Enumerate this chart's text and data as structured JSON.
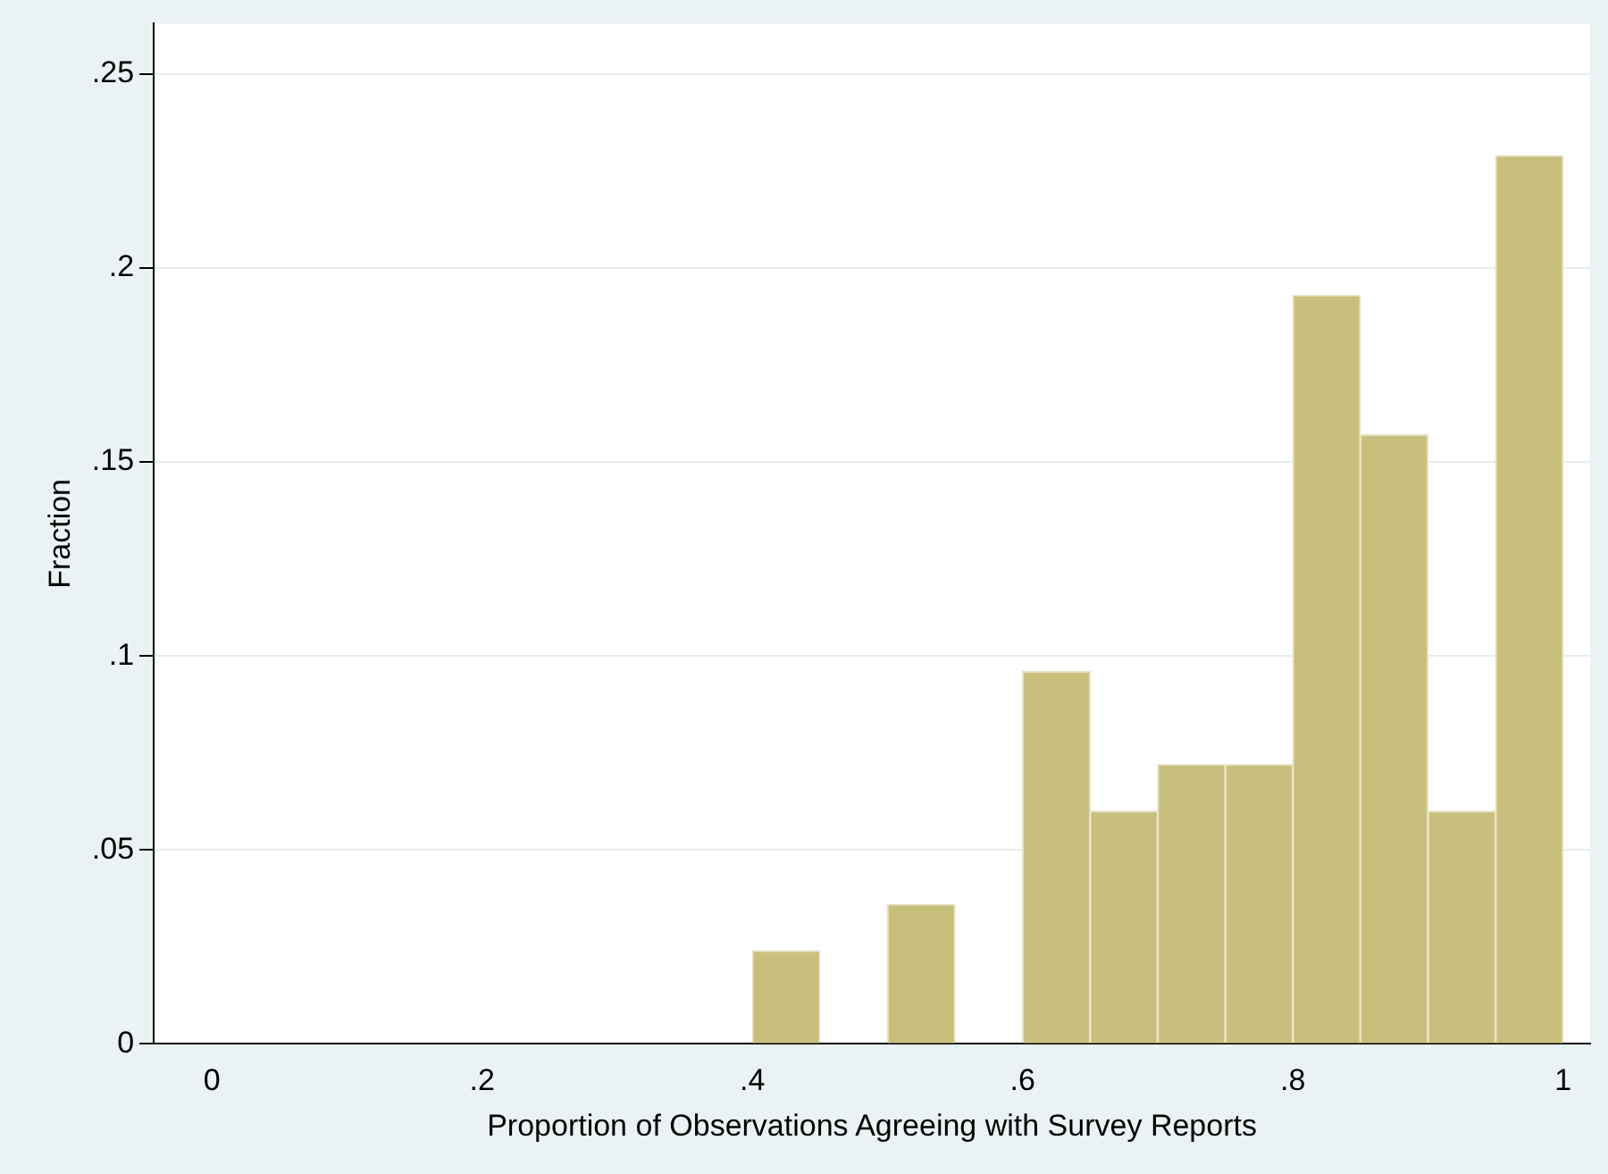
{
  "chart_data": {
    "type": "histogram",
    "xlabel": "Proportion of Observations Agreeing with Survey Reports",
    "ylabel": "Fraction",
    "bins": [
      0.4,
      0.45,
      0.5,
      0.55,
      0.6,
      0.65,
      0.7,
      0.75,
      0.8,
      0.85,
      0.9,
      0.95,
      1.0
    ],
    "values": [
      0.024,
      0,
      0.036,
      0,
      0.096,
      0.06,
      0.072,
      0.072,
      0.193,
      0.157,
      0.06,
      0.229
    ],
    "color": "#c8bf7c",
    "xlim": [
      -0.043,
      1.02
    ],
    "xticks": [
      {
        "value": 0,
        "label": "0"
      },
      {
        "value": 0.2,
        "label": ".2"
      },
      {
        "value": 0.4,
        "label": ".4"
      },
      {
        "value": 0.6,
        "label": ".6"
      },
      {
        "value": 0.8,
        "label": ".8"
      },
      {
        "value": 1,
        "label": "1"
      }
    ],
    "ylim": [
      0,
      0.263
    ],
    "yticks": [
      {
        "value": 0,
        "label": "0"
      },
      {
        "value": 0.05,
        "label": ".05"
      },
      {
        "value": 0.1,
        "label": ".1"
      },
      {
        "value": 0.15,
        "label": ".15"
      },
      {
        "value": 0.2,
        "label": ".2"
      },
      {
        "value": 0.25,
        "label": ".25"
      }
    ],
    "grid": "y",
    "legend": false
  }
}
